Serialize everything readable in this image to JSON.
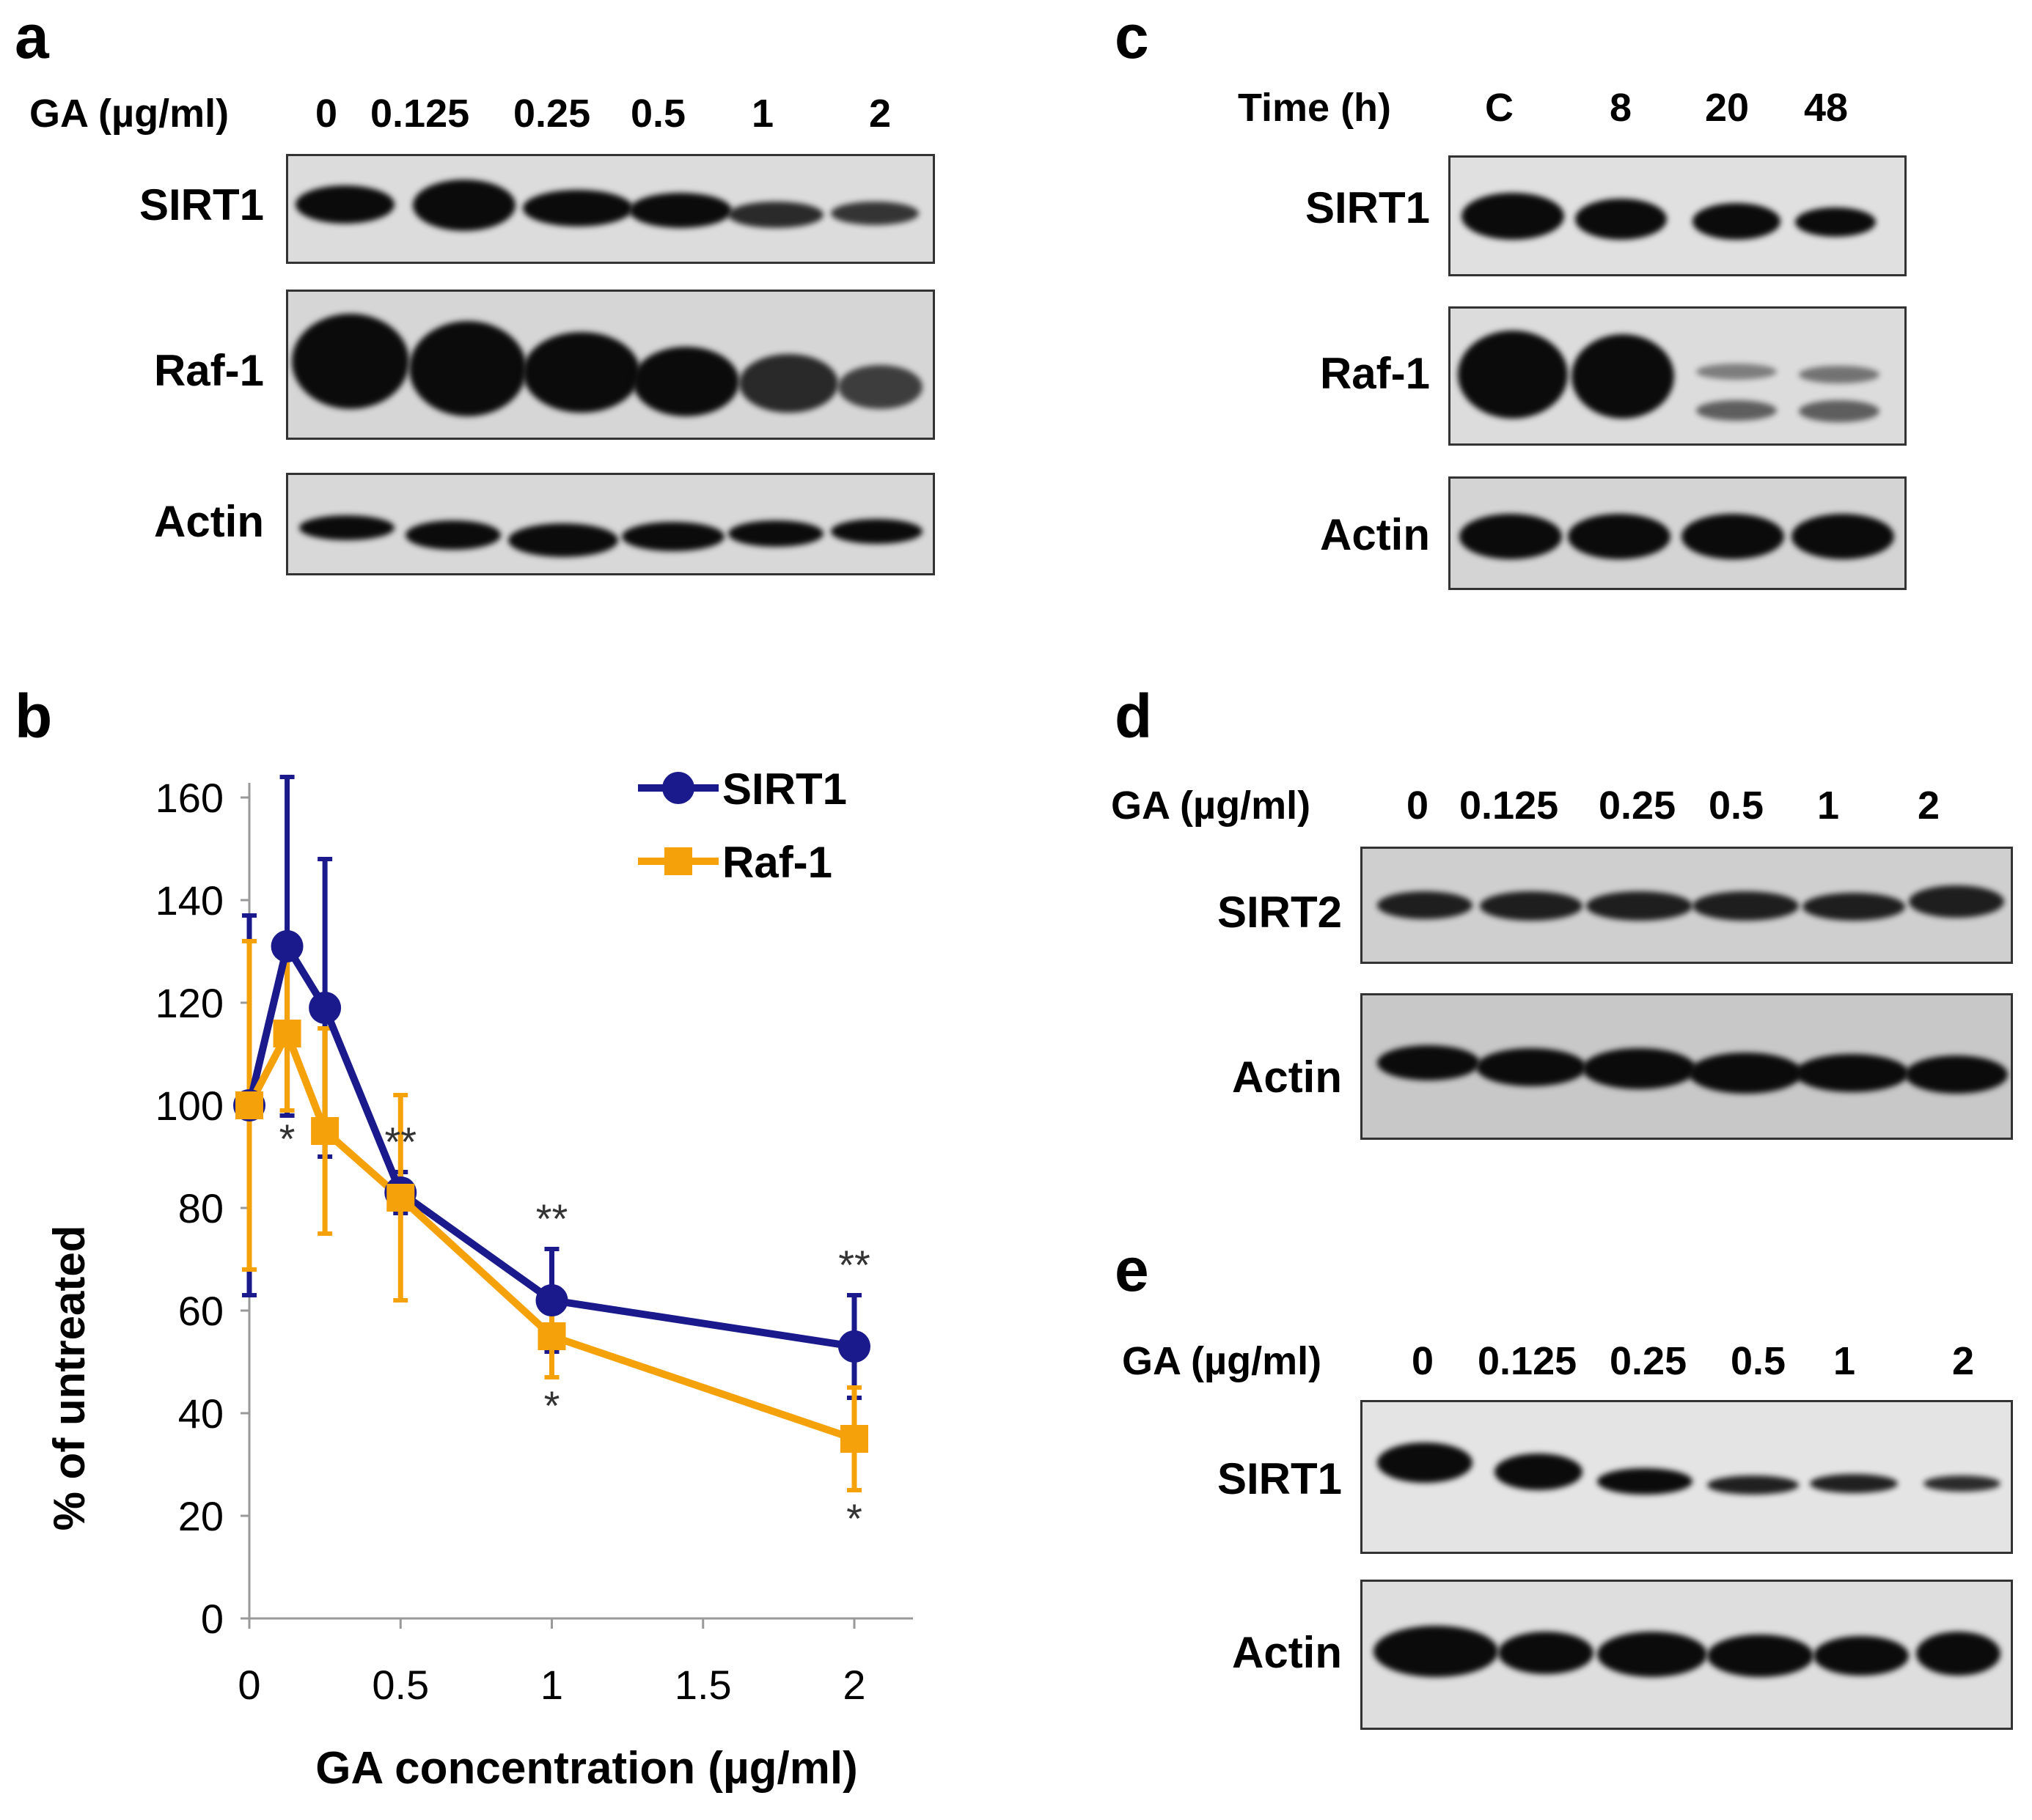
{
  "panels": {
    "a": {
      "label": "a",
      "header_label": "GA (µg/ml)",
      "lanes": [
        "0",
        "0.125",
        "0.25",
        "0.5",
        "1",
        "2"
      ],
      "rows": [
        "SIRT1",
        "Raf-1",
        "Actin"
      ]
    },
    "b": {
      "label": "b"
    },
    "c": {
      "label": "c",
      "header_label": "Time (h)",
      "lanes": [
        "C",
        "8",
        "20",
        "48"
      ],
      "rows": [
        "SIRT1",
        "Raf-1",
        "Actin"
      ]
    },
    "d": {
      "label": "d",
      "header_label": "GA (µg/ml)",
      "lanes": [
        "0",
        "0.125",
        "0.25",
        "0.5",
        "1",
        "2"
      ],
      "rows": [
        "SIRT2",
        "Actin"
      ]
    },
    "e": {
      "label": "e",
      "header_label": "GA (µg/ml)",
      "lanes": [
        "0",
        "0.125",
        "0.25",
        "0.5",
        "1",
        "2"
      ],
      "rows": [
        "SIRT1",
        "Actin"
      ]
    }
  },
  "chart_data": {
    "type": "line",
    "title": "",
    "xlabel": "GA concentration (µg/ml)",
    "ylabel": "% of untreated",
    "xlim": [
      0,
      2
    ],
    "ylim": [
      0,
      160
    ],
    "x_ticks": [
      "0",
      "0.5",
      "1",
      "1.5",
      "2"
    ],
    "y_ticks": [
      "0",
      "20",
      "40",
      "60",
      "80",
      "100",
      "120",
      "140",
      "160"
    ],
    "grid": false,
    "legend_position": "top-right",
    "x": [
      0,
      0.125,
      0.25,
      0.5,
      1,
      2
    ],
    "series": [
      {
        "name": "SIRT1",
        "color": "#1a1a8c",
        "marker": "circle",
        "values": [
          100,
          131,
          119,
          83,
          62,
          53
        ],
        "errors": [
          37,
          33,
          29,
          4,
          10,
          10
        ],
        "significance": [
          "",
          "",
          "",
          "**",
          "**",
          "**"
        ]
      },
      {
        "name": "Raf-1",
        "color": "#f5a10a",
        "marker": "square",
        "values": [
          100,
          114,
          95,
          82,
          55,
          35
        ],
        "errors": [
          32,
          15,
          20,
          20,
          8,
          10
        ],
        "significance": [
          "",
          "*",
          "",
          "",
          "*",
          "*"
        ]
      }
    ]
  }
}
